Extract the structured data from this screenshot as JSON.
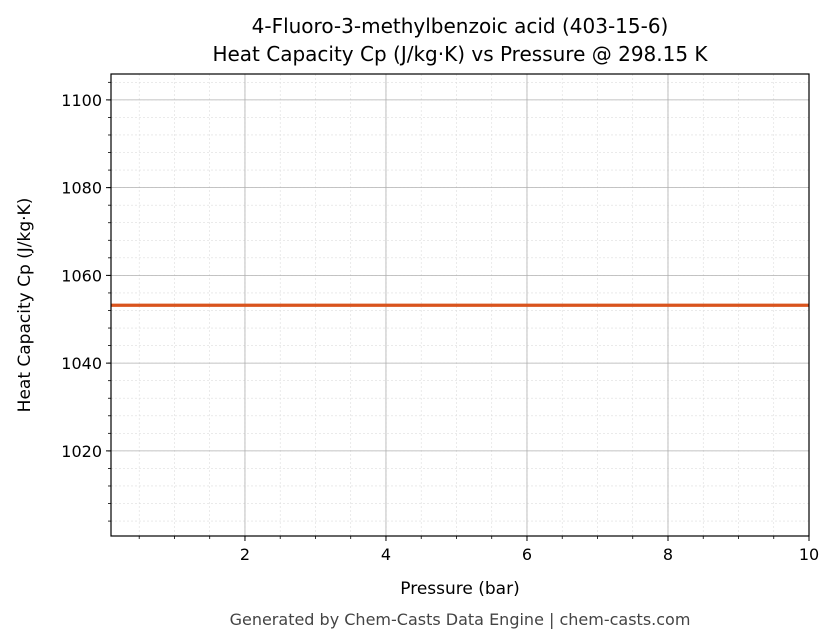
{
  "chart_data": {
    "type": "line",
    "title": "4-Fluoro-3-methylbenzoic acid (403-15-6)",
    "subtitle": "Heat Capacity Cp (J/kg·K) vs Pressure @ 298.15 K",
    "xlabel": "Pressure (bar)",
    "ylabel": "Heat Capacity Cp (J/kg·K)",
    "xlim": [
      0.1,
      10
    ],
    "ylim": [
      1000.6,
      1105.9
    ],
    "xticks": [
      2,
      4,
      6,
      8,
      10
    ],
    "yticks": [
      1020,
      1040,
      1060,
      1080,
      1100
    ],
    "x_minor_step": 0.5,
    "y_minor_step": 4,
    "grid": true,
    "series": [
      {
        "x": [
          0.1,
          10
        ],
        "y": [
          1053.2,
          1053.2
        ],
        "color": "#d9541e"
      }
    ],
    "footer": "Generated by Chem-Casts Data Engine | chem-casts.com"
  }
}
